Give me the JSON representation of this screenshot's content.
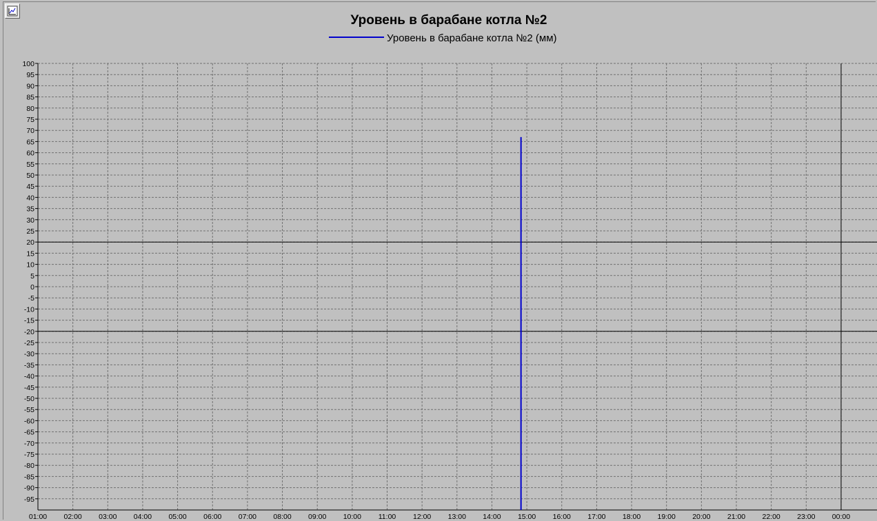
{
  "chart_data": {
    "type": "line",
    "title": "Уровень в барабане котла №2",
    "legend": {
      "placement": "top-center"
    },
    "series": [
      {
        "name": "Уровень в барабане котла №2 (мм)",
        "color": "#0000cc",
        "points": [
          {
            "x": "14:50",
            "y": 67
          },
          {
            "x": "14:50",
            "y": -100
          }
        ]
      }
    ],
    "x_ticks": [
      "01:00",
      "02:00",
      "03:00",
      "04:00",
      "05:00",
      "06:00",
      "07:00",
      "08:00",
      "09:00",
      "10:00",
      "11:00",
      "12:00",
      "13:00",
      "14:00",
      "15:00",
      "16:00",
      "17:00",
      "18:00",
      "19:00",
      "20:00",
      "21:00",
      "22:00",
      "23:00",
      "00:00"
    ],
    "y_ticks": [
      100,
      95,
      90,
      85,
      80,
      75,
      70,
      65,
      60,
      55,
      50,
      45,
      40,
      35,
      30,
      25,
      20,
      15,
      10,
      5,
      0,
      -5,
      -10,
      -15,
      -20,
      -25,
      -30,
      -35,
      -40,
      -45,
      -50,
      -55,
      -60,
      -65,
      -70,
      -75,
      -80,
      -85,
      -90,
      -95
    ],
    "ylim": [
      -100,
      100
    ],
    "xlim": [
      "01:00",
      "00:00 +1"
    ],
    "grid": true,
    "limit_lines": [
      20,
      -20
    ],
    "current_time_marker": "00:00",
    "background_color": "#c0c0c0",
    "grid_color": "#707070"
  }
}
